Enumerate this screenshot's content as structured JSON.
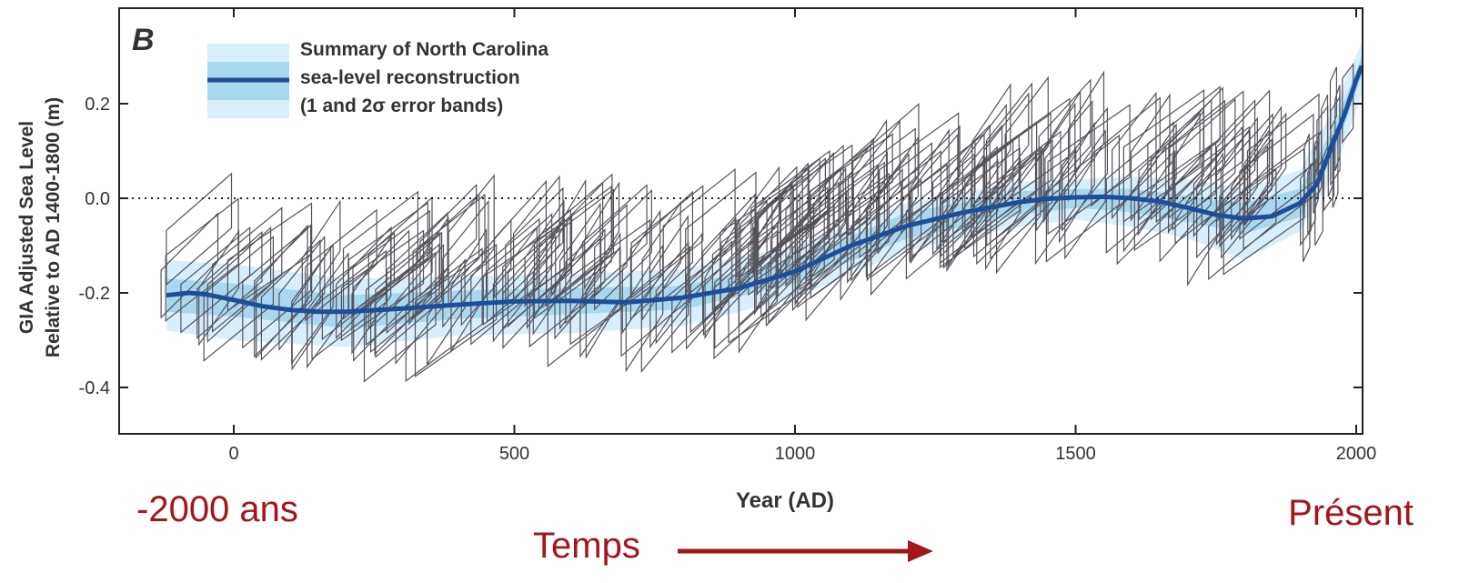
{
  "chart_data": {
    "type": "line",
    "panel_label": "B",
    "xlabel": "Year (AD)",
    "ylabel_line1": "GIA Adjusted Sea Level",
    "ylabel_line2": "Relative to  AD 1400-1800 (m)",
    "xlim": [
      -200,
      2010
    ],
    "ylim": [
      -0.5,
      0.39
    ],
    "x_ticks": [
      0,
      500,
      1000,
      1500,
      2000
    ],
    "x_tick_labels": [
      "0",
      "500",
      "1000",
      "1500",
      "2000"
    ],
    "y_ticks": [
      0.2,
      0.0,
      -0.2,
      -0.4
    ],
    "y_tick_labels": [
      "0.2",
      "0.0",
      "-0.2",
      "-0.4"
    ],
    "reference_line_y": 0.0,
    "legend": {
      "position": "top-left",
      "lines": [
        "Summary of North Carolina",
        "sea-level reconstruction",
        "(1 and 2σ error bands)"
      ]
    },
    "series": [
      {
        "name": "Summary of North Carolina sea-level reconstruction",
        "color": "#1c4e9a",
        "x": [
          -120,
          -80,
          -50,
          0,
          50,
          100,
          150,
          200,
          300,
          400,
          500,
          600,
          700,
          800,
          900,
          1000,
          1100,
          1200,
          1300,
          1400,
          1450,
          1500,
          1550,
          1600,
          1650,
          1700,
          1750,
          1800,
          1850,
          1900,
          1930,
          1960,
          1980,
          2000,
          2010
        ],
        "y": [
          -0.205,
          -0.2,
          -0.203,
          -0.215,
          -0.228,
          -0.236,
          -0.24,
          -0.24,
          -0.233,
          -0.225,
          -0.218,
          -0.217,
          -0.22,
          -0.21,
          -0.19,
          -0.155,
          -0.1,
          -0.058,
          -0.03,
          -0.008,
          -0.001,
          0.002,
          0.003,
          0.0,
          -0.007,
          -0.02,
          -0.035,
          -0.043,
          -0.038,
          -0.01,
          0.03,
          0.12,
          0.18,
          0.25,
          0.28
        ]
      }
    ],
    "error_band_1sigma": {
      "color": "#a8d8f0",
      "x": [
        -120,
        0,
        200,
        400,
        600,
        800,
        1000,
        1200,
        1400,
        1500,
        1600,
        1700,
        1800,
        1900,
        1960,
        2010
      ],
      "upper": [
        -0.17,
        -0.18,
        -0.205,
        -0.195,
        -0.19,
        -0.185,
        -0.13,
        -0.03,
        0.015,
        0.02,
        0.02,
        0.005,
        -0.01,
        0.02,
        0.15,
        0.3
      ],
      "lower": [
        -0.24,
        -0.25,
        -0.275,
        -0.255,
        -0.245,
        -0.235,
        -0.18,
        -0.085,
        -0.035,
        -0.02,
        -0.03,
        -0.05,
        -0.075,
        -0.04,
        0.09,
        0.26
      ]
    },
    "error_band_2sigma": {
      "color": "#d8eefa",
      "x": [
        -120,
        0,
        200,
        400,
        600,
        800,
        1000,
        1200,
        1400,
        1500,
        1600,
        1700,
        1800,
        1900,
        1960,
        2010
      ],
      "upper": [
        -0.13,
        -0.14,
        -0.17,
        -0.165,
        -0.16,
        -0.15,
        -0.1,
        -0.01,
        0.035,
        0.04,
        0.045,
        0.04,
        0.02,
        0.06,
        0.19,
        0.33
      ],
      "lower": [
        -0.28,
        -0.3,
        -0.315,
        -0.29,
        -0.285,
        -0.27,
        -0.21,
        -0.11,
        -0.06,
        -0.045,
        -0.06,
        -0.085,
        -0.13,
        -0.07,
        0.05,
        0.22
      ]
    }
  },
  "annotations": {
    "start": "-2000 ans",
    "end": "Présent",
    "time": "Temps"
  },
  "colors": {
    "annotation": "#a3161a",
    "data_boxes": "#55525a",
    "axes": "#222222"
  }
}
